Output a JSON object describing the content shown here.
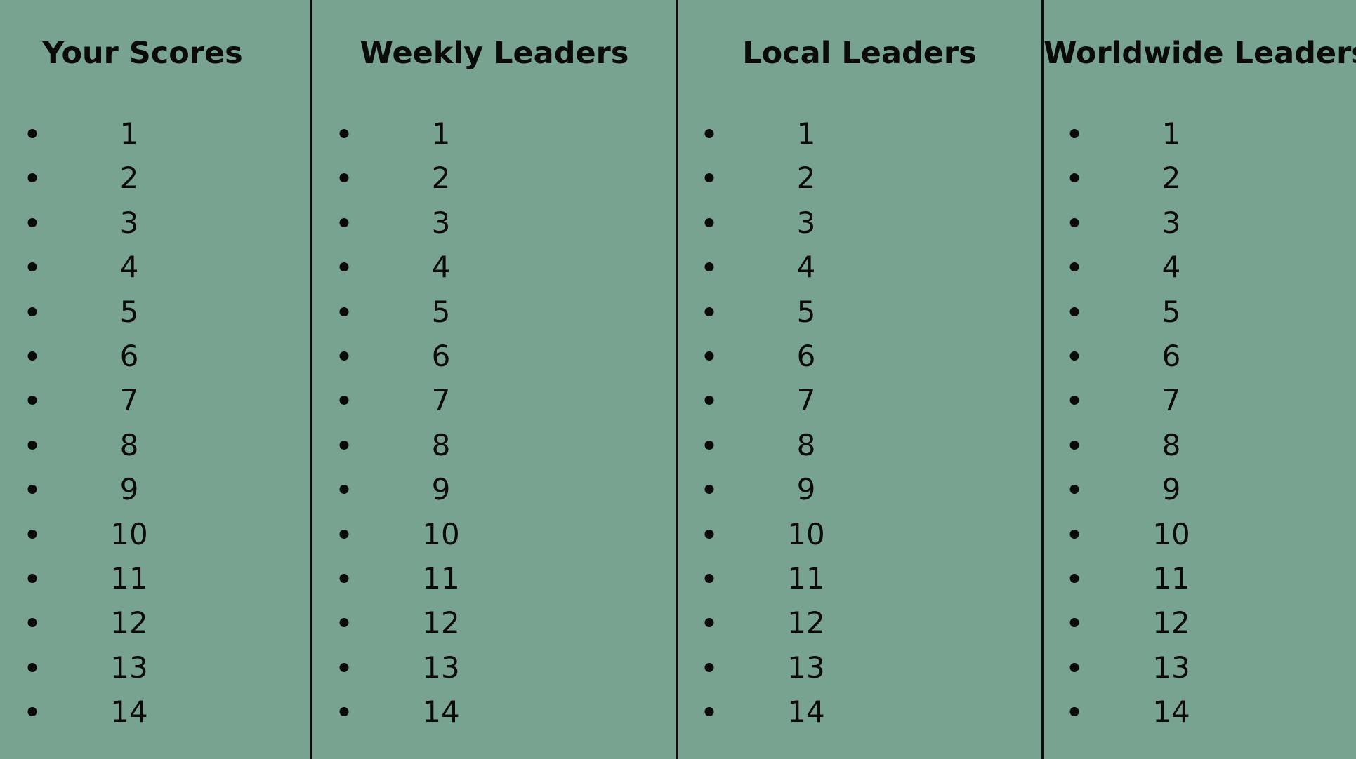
{
  "colors": {
    "background": "#79a391",
    "text": "#0b0b0b",
    "divider": "#0d0d0d"
  },
  "columns": [
    {
      "title": "Your Scores",
      "ranks": [
        "1",
        "2",
        "3",
        "4",
        "5",
        "6",
        "7",
        "8",
        "9",
        "10",
        "11",
        "12",
        "13",
        "14"
      ]
    },
    {
      "title": "Weekly Leaders",
      "ranks": [
        "1",
        "2",
        "3",
        "4",
        "5",
        "6",
        "7",
        "8",
        "9",
        "10",
        "11",
        "12",
        "13",
        "14"
      ]
    },
    {
      "title": "Local Leaders",
      "ranks": [
        "1",
        "2",
        "3",
        "4",
        "5",
        "6",
        "7",
        "8",
        "9",
        "10",
        "11",
        "12",
        "13",
        "14"
      ]
    },
    {
      "title": "Worldwide Leaders",
      "ranks": [
        "1",
        "2",
        "3",
        "4",
        "5",
        "6",
        "7",
        "8",
        "9",
        "10",
        "11",
        "12",
        "13",
        "14"
      ]
    }
  ]
}
